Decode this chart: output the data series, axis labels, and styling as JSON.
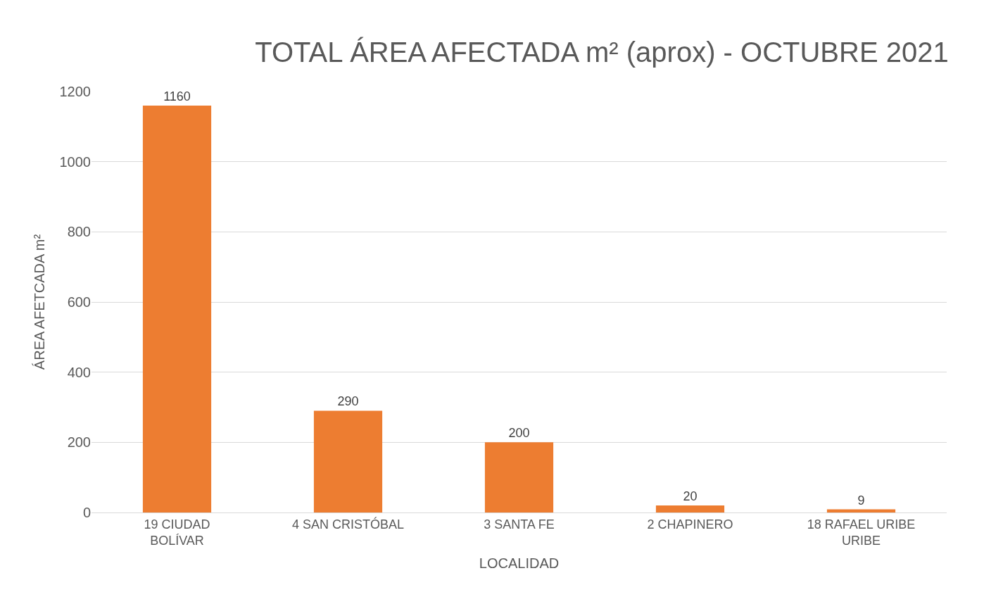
{
  "chart_data": {
    "type": "bar",
    "title": "TOTAL ÁREA AFECTADA m² (aprox) - OCTUBRE 2021",
    "xlabel": "LOCALIDAD",
    "ylabel": "ÁREA AFETCADA m²",
    "categories": [
      "19 CIUDAD BOLÍVAR",
      "4 SAN CRISTÓBAL",
      "3 SANTA FE",
      "2 CHAPINERO",
      "18 RAFAEL URIBE URIBE"
    ],
    "values": [
      1160,
      290,
      200,
      20,
      9
    ],
    "color": "#ed7d31",
    "ylim": [
      0,
      1200
    ],
    "yticks": [
      0,
      200,
      400,
      600,
      800,
      1000,
      1200
    ],
    "grid": "y",
    "data_labels": true
  }
}
